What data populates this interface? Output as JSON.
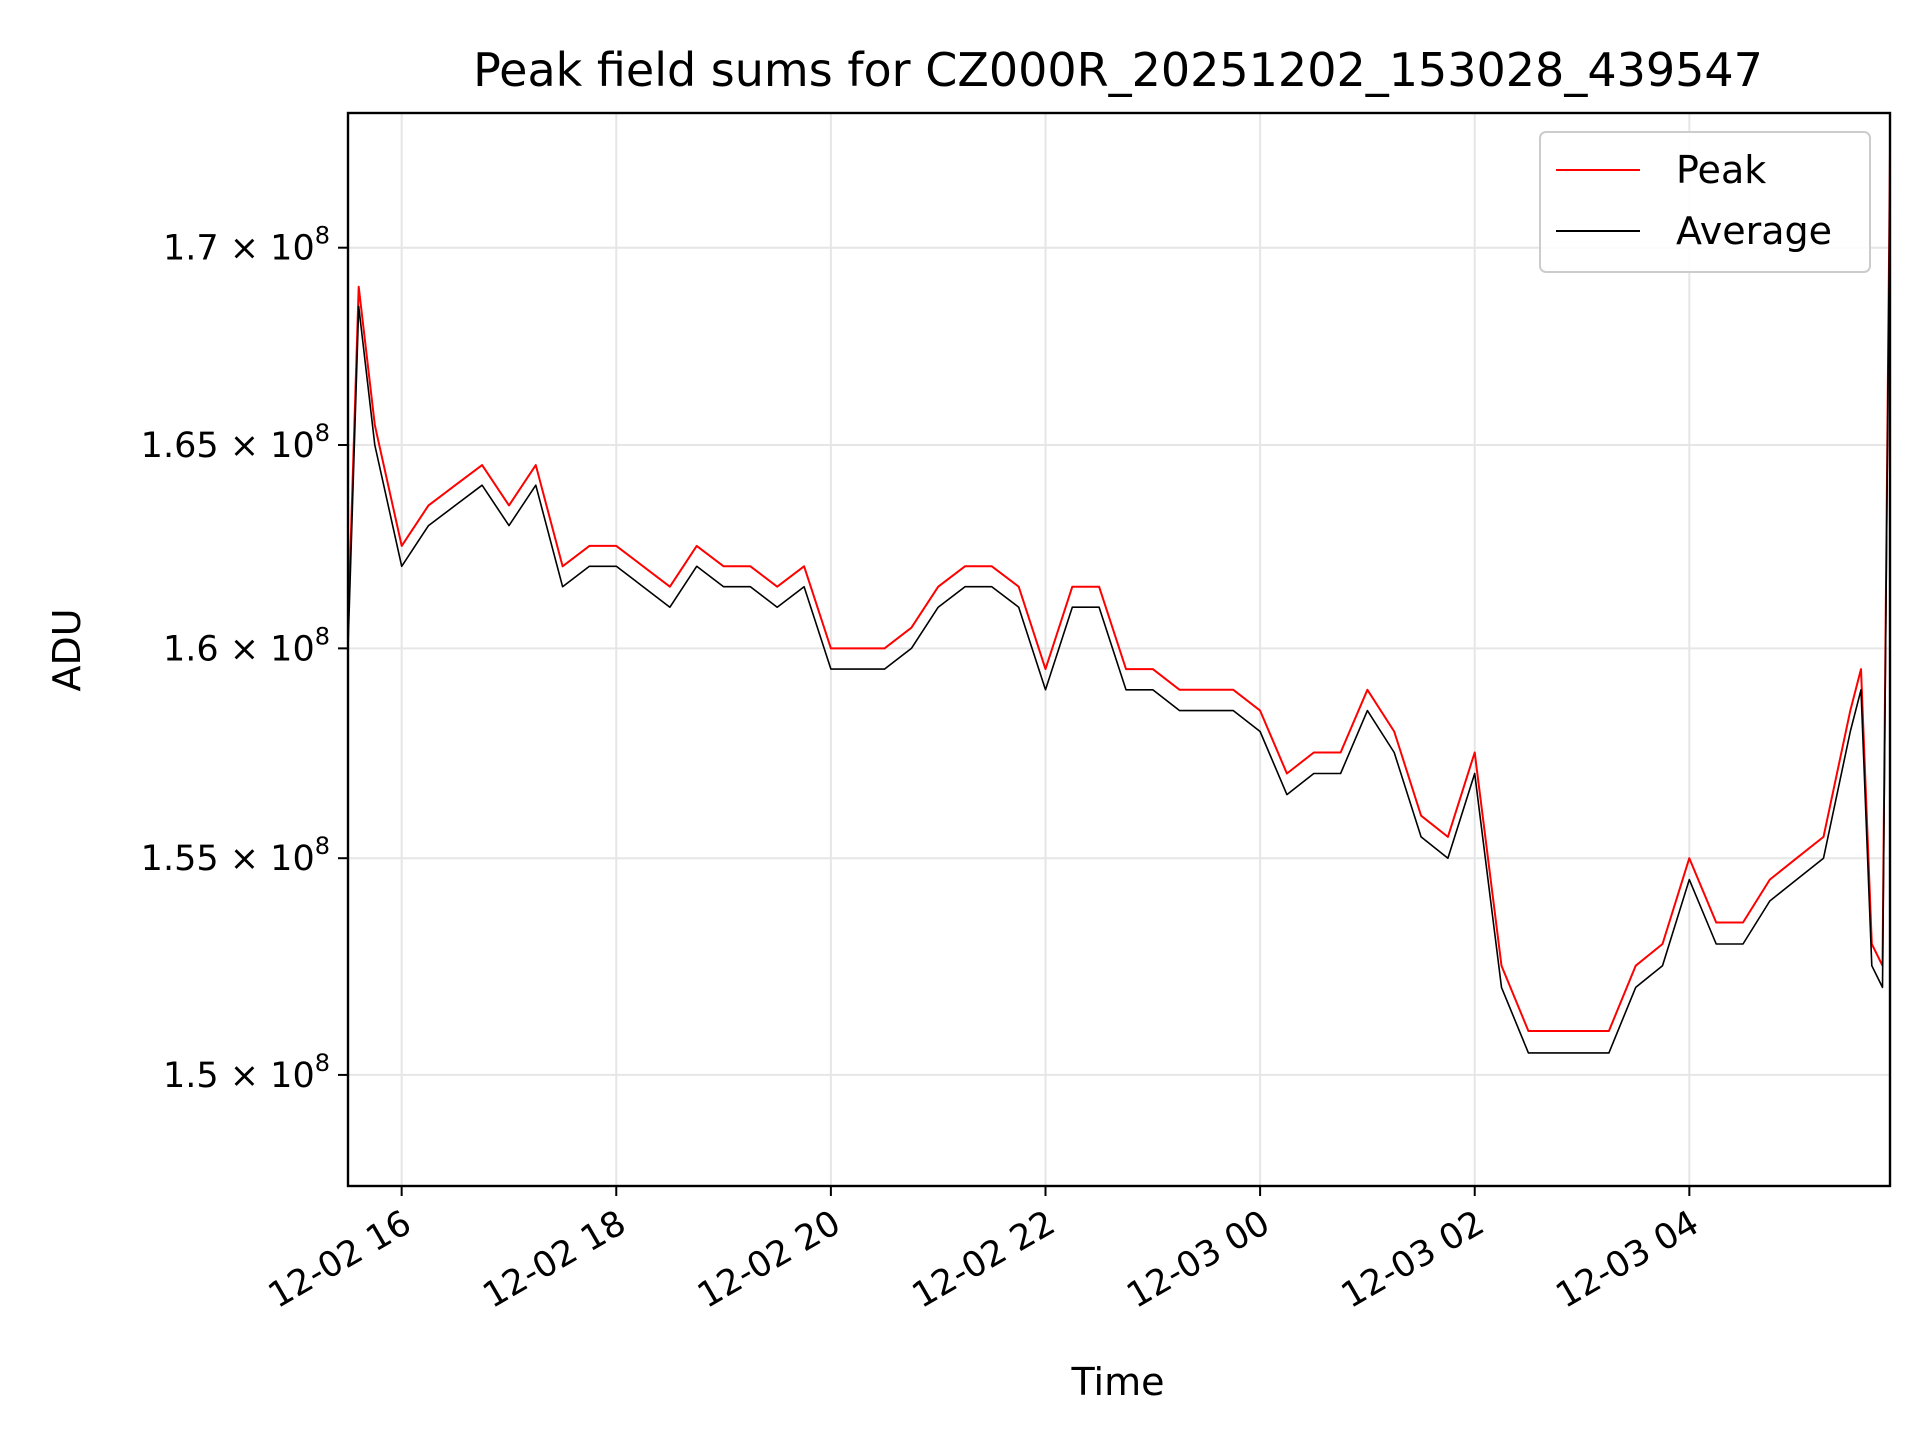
{
  "chart_data": {
    "type": "line",
    "title": "Peak field sums for CZ000R_20251202_153028_439547",
    "xlabel": "Time",
    "ylabel": "ADU",
    "x_ticks": [
      "12-02 16",
      "12-02 18",
      "12-02 20",
      "12-02 22",
      "12-03 00",
      "12-03 02",
      "12-03 04"
    ],
    "x_tick_hours": [
      16,
      18,
      20,
      22,
      24,
      26,
      28
    ],
    "xlim_hours": [
      15.5,
      29.87
    ],
    "y_ticks": [
      {
        "value": 150000000,
        "mantissa": "1.5",
        "base": "10",
        "exponent": "8"
      },
      {
        "value": 155000000,
        "mantissa": "1.55",
        "base": "10",
        "exponent": "8"
      },
      {
        "value": 160000000,
        "mantissa": "1.6",
        "base": "10",
        "exponent": "8"
      },
      {
        "value": 165000000,
        "mantissa": "1.65",
        "base": "10",
        "exponent": "8"
      },
      {
        "value": 170000000,
        "mantissa": "1.7",
        "base": "10",
        "exponent": "8"
      }
    ],
    "ylim": [
      147500000,
      173500000
    ],
    "y_scale": "log",
    "grid": true,
    "legend_position": "top-right",
    "series": [
      {
        "name": "Peak",
        "color": "#ff0000",
        "x_hours": [
          15.5,
          15.6,
          15.75,
          16.0,
          16.25,
          16.5,
          16.75,
          17.0,
          17.25,
          17.5,
          17.75,
          18.0,
          18.25,
          18.5,
          18.75,
          19.0,
          19.25,
          19.5,
          19.75,
          20.0,
          20.25,
          20.5,
          20.75,
          21.0,
          21.25,
          21.5,
          21.75,
          22.0,
          22.25,
          22.5,
          22.75,
          23.0,
          23.25,
          23.5,
          23.75,
          24.0,
          24.25,
          24.5,
          24.75,
          25.0,
          25.25,
          25.5,
          25.75,
          26.0,
          26.25,
          26.5,
          26.75,
          27.0,
          27.25,
          27.5,
          27.75,
          28.0,
          28.25,
          28.5,
          28.75,
          29.0,
          29.25,
          29.5,
          29.6,
          29.7,
          29.8,
          29.87
        ],
        "values": [
          160500000,
          169000000,
          165500000,
          162500000,
          163500000,
          164000000,
          164500000,
          163500000,
          164500000,
          162000000,
          162500000,
          162500000,
          162000000,
          161500000,
          162500000,
          162000000,
          162000000,
          161500000,
          162000000,
          160000000,
          160000000,
          160000000,
          160500000,
          161500000,
          162000000,
          162000000,
          161500000,
          159500000,
          161500000,
          161500000,
          159500000,
          159500000,
          159000000,
          159000000,
          159000000,
          158500000,
          157000000,
          157500000,
          157500000,
          159000000,
          158000000,
          156000000,
          155500000,
          157500000,
          152500000,
          151000000,
          151000000,
          151000000,
          151000000,
          152500000,
          153000000,
          155000000,
          153500000,
          153500000,
          154500000,
          155000000,
          155500000,
          158500000,
          159500000,
          153000000,
          152500000,
          172500000
        ]
      },
      {
        "name": "Average",
        "color": "#000000",
        "x_hours": [
          15.5,
          15.6,
          15.75,
          16.0,
          16.25,
          16.5,
          16.75,
          17.0,
          17.25,
          17.5,
          17.75,
          18.0,
          18.25,
          18.5,
          18.75,
          19.0,
          19.25,
          19.5,
          19.75,
          20.0,
          20.25,
          20.5,
          20.75,
          21.0,
          21.25,
          21.5,
          21.75,
          22.0,
          22.25,
          22.5,
          22.75,
          23.0,
          23.25,
          23.5,
          23.75,
          24.0,
          24.25,
          24.5,
          24.75,
          25.0,
          25.25,
          25.5,
          25.75,
          26.0,
          26.25,
          26.5,
          26.75,
          27.0,
          27.25,
          27.5,
          27.75,
          28.0,
          28.25,
          28.5,
          28.75,
          29.0,
          29.25,
          29.5,
          29.6,
          29.7,
          29.8,
          29.87
        ],
        "values": [
          160000000,
          168500000,
          165000000,
          162000000,
          163000000,
          163500000,
          164000000,
          163000000,
          164000000,
          161500000,
          162000000,
          162000000,
          161500000,
          161000000,
          162000000,
          161500000,
          161500000,
          161000000,
          161500000,
          159500000,
          159500000,
          159500000,
          160000000,
          161000000,
          161500000,
          161500000,
          161000000,
          159000000,
          161000000,
          161000000,
          159000000,
          159000000,
          158500000,
          158500000,
          158500000,
          158000000,
          156500000,
          157000000,
          157000000,
          158500000,
          157500000,
          155500000,
          155000000,
          157000000,
          152000000,
          150500000,
          150500000,
          150500000,
          150500000,
          152000000,
          152500000,
          154500000,
          153000000,
          153000000,
          154000000,
          154500000,
          155000000,
          158000000,
          159000000,
          152500000,
          152000000,
          172000000
        ]
      }
    ]
  }
}
